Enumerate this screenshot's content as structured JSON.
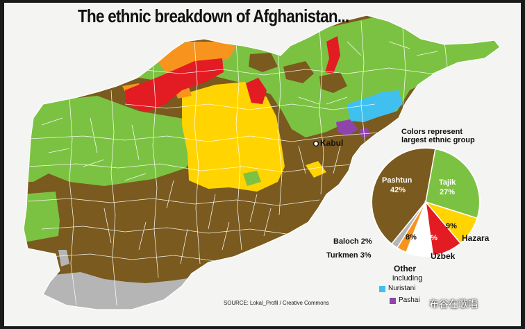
{
  "title": "The ethnic breakdown of Afghanistan...",
  "capital": {
    "name": "Kabul"
  },
  "legend": {
    "title_line1": "Colors represent",
    "title_line2": "largest ethnic group"
  },
  "colors": {
    "pashtun": "#7a5a1e",
    "tajik": "#7cc242",
    "hazara": "#ffd400",
    "uzbek": "#e31b23",
    "turkmen": "#f7941d",
    "baloch": "#b5b5b5",
    "nuristani": "#3fc0ee",
    "pashai": "#8e44ad"
  },
  "chart_data": {
    "type": "pie",
    "categories": [
      "Pashtun",
      "Tajik",
      "Hazara",
      "Uzbek",
      "Other",
      "Turkmen",
      "Baloch"
    ],
    "values": [
      42,
      27,
      9,
      9,
      8,
      3,
      2
    ],
    "labels": [
      "Pashtun 42%",
      "Tajik 27%",
      "9% Hazara",
      "9% Uzbek",
      "8% Other",
      "Turkmen 3%",
      "Baloch 2%"
    ]
  },
  "pie_labels": {
    "pashtun_name": "Pashtun",
    "pashtun_pct": "42%",
    "tajik_name": "Tajik",
    "tajik_pct": "27%",
    "hazara_pct": "9%",
    "hazara_name": "Hazara",
    "uzbek_pct": "9%",
    "uzbek_name": "Uzbek",
    "other_pct": "8%",
    "other_name": "Other",
    "other_including": "including",
    "turkmen": "Turkmen 3%",
    "baloch": "Baloch 2%"
  },
  "other_sub": [
    {
      "name": "Nuristani",
      "color": "#3fc0ee"
    },
    {
      "name": "Pashai",
      "color": "#8e44ad"
    }
  ],
  "source": "SOURCE: Lokal_Profil / Creative Commons",
  "watermark": "布谷在歌唱"
}
